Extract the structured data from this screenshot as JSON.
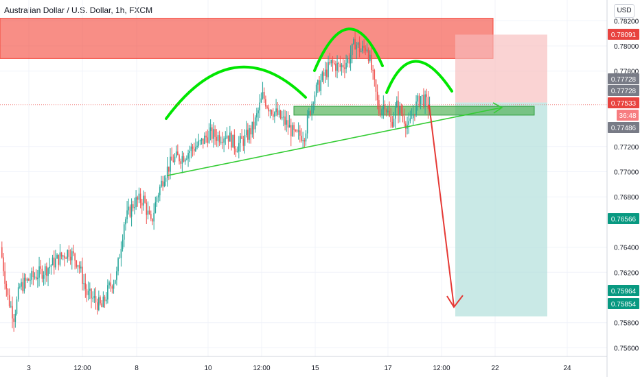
{
  "header": {
    "title": "Australian Dollar / U.S. Dollar, 1h, FXCM",
    "currency_button": "USD"
  },
  "colors": {
    "up": "#26a69a",
    "down": "#ef5350",
    "resistance_zone": "#f44336",
    "support_zone": "#4caf50",
    "pattern_arc": "#00e600",
    "trendline": "#33cc33",
    "projection": "#e53935",
    "stop_zone": "#f8bbbb",
    "target_zone": "#b2dfdb"
  },
  "chart_data": {
    "type": "candlestick",
    "symbol": "AUDUSD",
    "interval": "1h",
    "source": "FXCM",
    "ylim": [
      0.755,
      0.783
    ],
    "y_ticks": [
      "0.78200",
      "0.78000",
      "0.77800",
      "0.77200",
      "0.77000",
      "0.76800",
      "0.76400",
      "0.76200",
      "0.75800",
      "0.75600"
    ],
    "x_ticks": [
      "3",
      "12:00",
      "8",
      "10",
      "12:00",
      "15",
      "17",
      "12:00",
      "22",
      "24"
    ],
    "price_tags": [
      {
        "value": "0.78091",
        "kind": "red"
      },
      {
        "value": "0.77728",
        "kind": "gray"
      },
      {
        "value": "0.77728",
        "kind": "gray"
      },
      {
        "value": "0.77533",
        "kind": "red"
      },
      {
        "value": "36:48",
        "kind": "red-light"
      },
      {
        "value": "0.77486",
        "kind": "gray"
      },
      {
        "value": "0.76566",
        "kind": "teal"
      },
      {
        "value": "0.75964",
        "kind": "teal"
      },
      {
        "value": "0.75854",
        "kind": "teal"
      }
    ],
    "price_path": [
      {
        "t": 0,
        "p": 0.764
      },
      {
        "t": 5,
        "p": 0.76
      },
      {
        "t": 9,
        "p": 0.7585
      },
      {
        "t": 13,
        "p": 0.7608
      },
      {
        "t": 20,
        "p": 0.7615
      },
      {
        "t": 30,
        "p": 0.7622
      },
      {
        "t": 38,
        "p": 0.763
      },
      {
        "t": 46,
        "p": 0.7637
      },
      {
        "t": 52,
        "p": 0.7628
      },
      {
        "t": 58,
        "p": 0.7603
      },
      {
        "t": 63,
        "p": 0.7598
      },
      {
        "t": 68,
        "p": 0.7592
      },
      {
        "t": 73,
        "p": 0.7608
      },
      {
        "t": 78,
        "p": 0.7618
      },
      {
        "t": 83,
        "p": 0.766
      },
      {
        "t": 90,
        "p": 0.7676
      },
      {
        "t": 96,
        "p": 0.7678
      },
      {
        "t": 101,
        "p": 0.7658
      },
      {
        "t": 105,
        "p": 0.768
      },
      {
        "t": 110,
        "p": 0.7698
      },
      {
        "t": 116,
        "p": 0.771
      },
      {
        "t": 122,
        "p": 0.7712
      },
      {
        "t": 128,
        "p": 0.7718
      },
      {
        "t": 134,
        "p": 0.7722
      },
      {
        "t": 140,
        "p": 0.773
      },
      {
        "t": 146,
        "p": 0.7728
      },
      {
        "t": 152,
        "p": 0.773
      },
      {
        "t": 158,
        "p": 0.772
      },
      {
        "t": 164,
        "p": 0.7726
      },
      {
        "t": 170,
        "p": 0.7736
      },
      {
        "t": 176,
        "p": 0.776
      },
      {
        "t": 180,
        "p": 0.7752
      },
      {
        "t": 186,
        "p": 0.7745
      },
      {
        "t": 192,
        "p": 0.7738
      },
      {
        "t": 198,
        "p": 0.7728
      },
      {
        "t": 204,
        "p": 0.773
      },
      {
        "t": 210,
        "p": 0.776
      },
      {
        "t": 216,
        "p": 0.7774
      },
      {
        "t": 222,
        "p": 0.7786
      },
      {
        "t": 228,
        "p": 0.7783
      },
      {
        "t": 234,
        "p": 0.779
      },
      {
        "t": 238,
        "p": 0.7803
      },
      {
        "t": 242,
        "p": 0.7796
      },
      {
        "t": 246,
        "p": 0.78
      },
      {
        "t": 250,
        "p": 0.7775
      },
      {
        "t": 254,
        "p": 0.7748
      },
      {
        "t": 258,
        "p": 0.7755
      },
      {
        "t": 262,
        "p": 0.7738
      },
      {
        "t": 266,
        "p": 0.7752
      },
      {
        "t": 270,
        "p": 0.7745
      },
      {
        "t": 274,
        "p": 0.7735
      },
      {
        "t": 278,
        "p": 0.775
      },
      {
        "t": 282,
        "p": 0.776
      },
      {
        "t": 287,
        "p": 0.7753
      }
    ],
    "annotations": {
      "resistance_zone": {
        "price_from": 0.779,
        "price_to": 0.7822
      },
      "support_zone": {
        "price_from": 0.7745,
        "price_to": 0.7752
      },
      "neckline": {
        "from": {
          "t": 113,
          "p": 0.7698
        },
        "to": {
          "t": 340,
          "p": 0.7757
        }
      },
      "stop_zone": {
        "price_from": 0.7755,
        "price_to": 0.7809
      },
      "target_zone": {
        "price_from": 0.7585,
        "price_to": 0.7755
      },
      "projection_arrow": {
        "from_price": 0.7753,
        "to_price": 0.7585
      }
    }
  }
}
